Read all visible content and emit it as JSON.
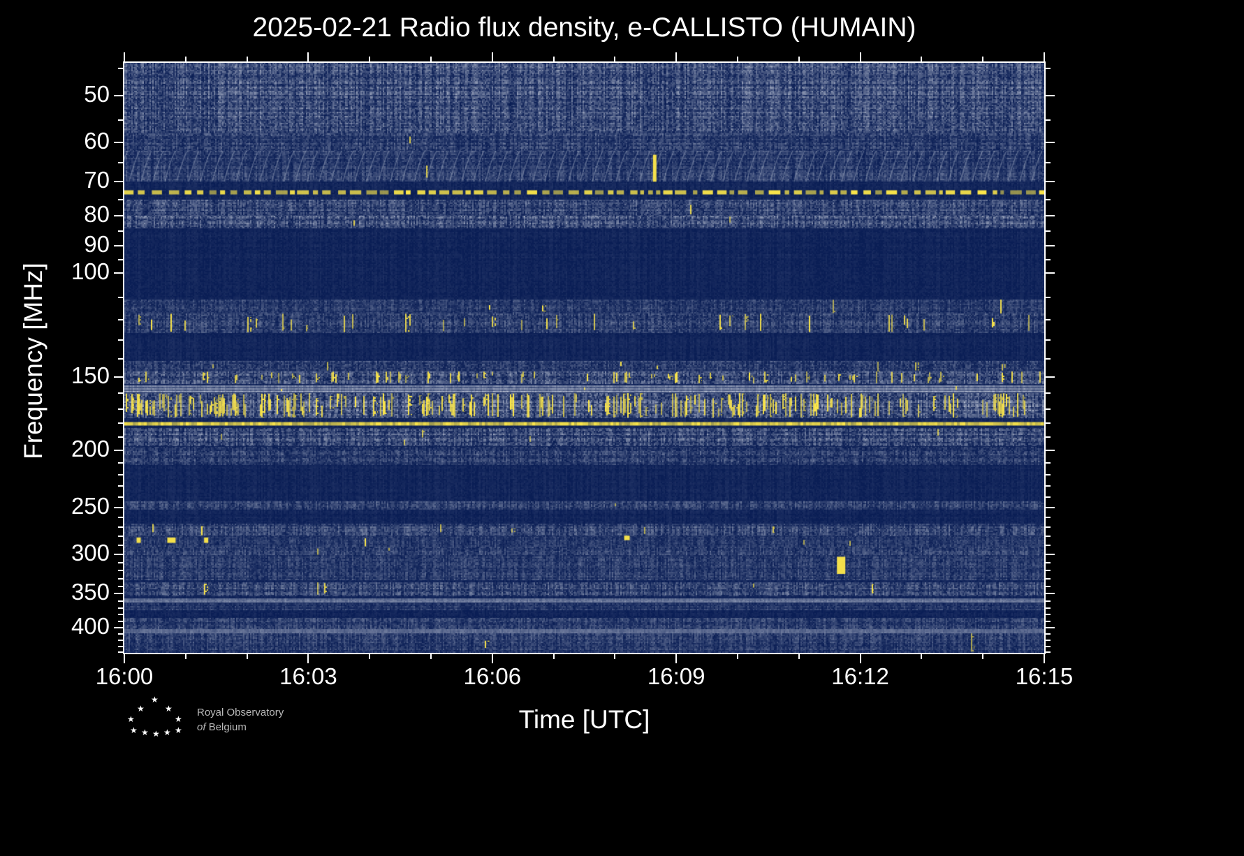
{
  "chart_data": {
    "type": "heatmap",
    "title": "2025-02-21 Radio flux density, e-CALLISTO (HUMAIN)",
    "xlabel": "Time [UTC]",
    "ylabel": "Frequency [MHz]",
    "x_ticks": [
      "16:00",
      "16:03",
      "16:06",
      "16:09",
      "16:12",
      "16:15"
    ],
    "x_tick_minutes": [
      0,
      3,
      6,
      9,
      12,
      15
    ],
    "x_minor_every_minutes": 1,
    "time_range_minutes": 15,
    "y_ticks": [
      50,
      60,
      70,
      80,
      90,
      100,
      150,
      200,
      250,
      300,
      350,
      400
    ],
    "y_minor_ticks": [
      45,
      55,
      65,
      75,
      85,
      95,
      110,
      120,
      130,
      140,
      160,
      170,
      180,
      190,
      210,
      220,
      230,
      240,
      260,
      270,
      280,
      290,
      310,
      320,
      330,
      340,
      360,
      370,
      380,
      390,
      410,
      420,
      430,
      440
    ],
    "ylim": [
      44,
      441
    ],
    "y_scale": "log",
    "y_inverted": true,
    "grid": false,
    "legend": "none",
    "colormap": {
      "background": "#0a1e55",
      "bright": "#cdd3e0",
      "yellow": "#ffe94a"
    },
    "bands": [
      {
        "f_low": 44,
        "f_high": 441,
        "style": "noise",
        "base": 0.04,
        "noise": 0.07,
        "yellow_prob": 0.0
      },
      {
        "f_low": 44,
        "f_high": 58,
        "style": "noise",
        "base": 0.26,
        "noise": 0.4,
        "yellow_prob": 0.001
      },
      {
        "f_low": 58,
        "f_high": 62,
        "style": "noise",
        "base": 0.18,
        "noise": 0.3,
        "yellow_prob": 0.0005
      },
      {
        "f_low": 62,
        "f_high": 70,
        "style": "arcs",
        "base": 0.16,
        "noise": 0.25,
        "yellow_prob": 0.0008
      },
      {
        "f_low": 71.5,
        "f_high": 74.5,
        "style": "dashed-line",
        "base": 0,
        "noise": 0,
        "yellow_prob": 0
      },
      {
        "f_low": 75,
        "f_high": 80,
        "style": "noise",
        "base": 0.22,
        "noise": 0.35,
        "yellow_prob": 0.001
      },
      {
        "f_low": 80,
        "f_high": 84,
        "style": "noise",
        "base": 0.26,
        "noise": 0.4,
        "yellow_prob": 0.002
      },
      {
        "f_low": 111,
        "f_high": 117,
        "style": "noise",
        "base": 0.14,
        "noise": 0.25,
        "yellow_prob": 0.003
      },
      {
        "f_low": 117,
        "f_high": 126,
        "style": "blotch",
        "base": 0.17,
        "noise": 0.3,
        "yellow_prob": 0.035
      },
      {
        "f_low": 141,
        "f_high": 147,
        "style": "noise",
        "base": 0.16,
        "noise": 0.3,
        "yellow_prob": 0.004
      },
      {
        "f_low": 147,
        "f_high": 154,
        "style": "blotch",
        "base": 0.26,
        "noise": 0.4,
        "yellow_prob": 0.05
      },
      {
        "f_low": 155,
        "f_high": 159,
        "style": "solid-gray",
        "base": 0.55,
        "noise": 0.15,
        "yellow_prob": 0.002
      },
      {
        "f_low": 160,
        "f_high": 176,
        "style": "blotch",
        "base": 0.3,
        "noise": 0.45,
        "yellow_prob": 0.16
      },
      {
        "f_low": 178,
        "f_high": 182,
        "style": "solid-line",
        "base": 0,
        "noise": 0,
        "yellow_prob": 0
      },
      {
        "f_low": 183,
        "f_high": 196,
        "style": "noise",
        "base": 0.26,
        "noise": 0.4,
        "yellow_prob": 0.004
      },
      {
        "f_low": 197,
        "f_high": 211,
        "style": "noise",
        "base": 0.18,
        "noise": 0.3,
        "yellow_prob": 0.001
      },
      {
        "f_low": 244,
        "f_high": 252,
        "style": "noise",
        "base": 0.17,
        "noise": 0.28,
        "yellow_prob": 0.001
      },
      {
        "f_low": 266,
        "f_high": 279,
        "style": "noise",
        "base": 0.2,
        "noise": 0.32,
        "yellow_prob": 0.001
      },
      {
        "f_low": 279,
        "f_high": 291,
        "style": "noise",
        "base": 0.13,
        "noise": 0.22,
        "yellow_prob": 0.002
      },
      {
        "f_low": 291,
        "f_high": 301,
        "style": "noise",
        "base": 0.17,
        "noise": 0.28,
        "yellow_prob": 0.001
      },
      {
        "f_low": 301,
        "f_high": 332,
        "style": "noise",
        "base": 0.15,
        "noise": 0.26,
        "yellow_prob": 0.001
      },
      {
        "f_low": 335,
        "f_high": 353,
        "style": "noise",
        "base": 0.2,
        "noise": 0.34,
        "yellow_prob": 0.002
      },
      {
        "f_low": 356,
        "f_high": 362,
        "style": "solid-gray",
        "base": 0.4,
        "noise": 0.15,
        "yellow_prob": 0
      },
      {
        "f_low": 363,
        "f_high": 373,
        "style": "noise",
        "base": 0.13,
        "noise": 0.22,
        "yellow_prob": 0
      },
      {
        "f_low": 385,
        "f_high": 401,
        "style": "noise",
        "base": 0.16,
        "noise": 0.28,
        "yellow_prob": 0
      },
      {
        "f_low": 402,
        "f_high": 407,
        "style": "solid-gray",
        "base": 0.35,
        "noise": 0.12,
        "yellow_prob": 0
      },
      {
        "f_low": 409,
        "f_high": 441,
        "style": "noise",
        "base": 0.15,
        "noise": 0.26,
        "yellow_prob": 0.001
      }
    ],
    "events": [
      {
        "t": 8.62,
        "f_low": 63,
        "f_high": 70,
        "w": 5
      },
      {
        "t": 11.62,
        "f_low": 303,
        "f_high": 324,
        "w": 12
      },
      {
        "t": 0.2,
        "f_low": 281,
        "f_high": 287,
        "w": 6
      },
      {
        "t": 0.7,
        "f_low": 281,
        "f_high": 287,
        "w": 12
      },
      {
        "t": 1.3,
        "f_low": 281,
        "f_high": 287,
        "w": 6
      },
      {
        "t": 8.15,
        "f_low": 279,
        "f_high": 284,
        "w": 8
      }
    ]
  },
  "logo": {
    "line1": "Royal Observatory",
    "line2_italic": "of",
    "line2_rest": "Belgium"
  }
}
